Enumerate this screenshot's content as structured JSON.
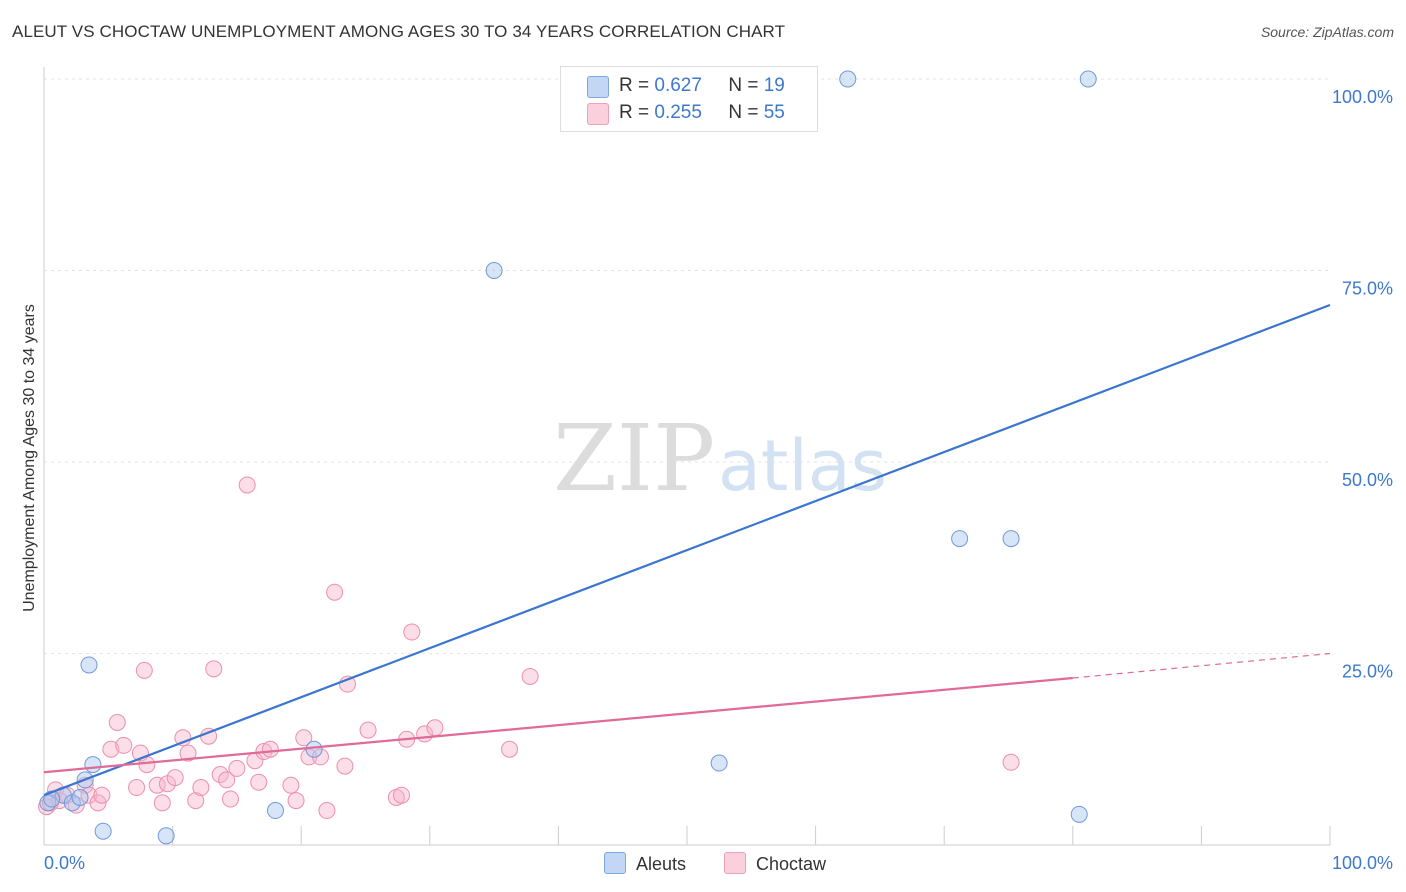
{
  "header": {
    "title": "ALEUT VS CHOCTAW UNEMPLOYMENT AMONG AGES 30 TO 34 YEARS CORRELATION CHART",
    "source": "Source: ZipAtlas.com"
  },
  "watermark": {
    "zip": "ZIP",
    "atlas": "atlas"
  },
  "legend": {
    "rows": [
      {
        "r_label": "R =",
        "r_value": "0.627",
        "n_label": "N =",
        "n_value": "19"
      },
      {
        "r_label": "R =",
        "r_value": "0.255",
        "n_label": "N =",
        "n_value": "55"
      }
    ]
  },
  "bottom_legend": {
    "aleuts": "Aleuts",
    "choctaw": "Choctaw"
  },
  "chart_data": {
    "type": "scatter",
    "title": "ALEUT VS CHOCTAW UNEMPLOYMENT AMONG AGES 30 TO 34 YEARS CORRELATION CHART",
    "xlabel": "",
    "ylabel": "Unemployment Among Ages 30 to 34 years",
    "xlim": [
      0,
      100
    ],
    "ylim": [
      0,
      100
    ],
    "x_tick_labels": [
      "0.0%",
      "100.0%"
    ],
    "y_ticks": [
      25,
      50,
      75,
      100
    ],
    "y_tick_labels": [
      "25.0%",
      "50.0%",
      "75.0%",
      "100.0%"
    ],
    "grid": true,
    "colors": {
      "aleuts": "#8fb3e8",
      "aleuts_line": "#3a76d0",
      "choctaw": "#f3a8c0",
      "choctaw_line": "#e06a98",
      "tick_text": "#3d78cc"
    },
    "series": [
      {
        "name": "Aleuts",
        "r": 0.627,
        "n": 19,
        "trend": {
          "x0": 0,
          "y0": 6.5,
          "x1": 100,
          "y1": 70.5
        },
        "points": [
          [
            0.3,
            5.5
          ],
          [
            1.5,
            6.5
          ],
          [
            2.2,
            5.5
          ],
          [
            3.2,
            8.5
          ],
          [
            3.5,
            23.5
          ],
          [
            3.8,
            10.5
          ],
          [
            4.6,
            1.8
          ],
          [
            9.5,
            1.2
          ],
          [
            18,
            4.5
          ],
          [
            21,
            12.5
          ],
          [
            35,
            75
          ],
          [
            52.5,
            10.7
          ],
          [
            62.5,
            100
          ],
          [
            71.2,
            40
          ],
          [
            75.2,
            40
          ],
          [
            80.5,
            4
          ],
          [
            81.2,
            100
          ],
          [
            0.6,
            6
          ],
          [
            2.8,
            6.2
          ]
        ]
      },
      {
        "name": "Choctaw",
        "r": 0.255,
        "n": 55,
        "trend": {
          "x0": 0,
          "y0": 9.5,
          "x1": 80,
          "y1": 21.8,
          "x_dash_end": 100,
          "y_dash_end": 25
        },
        "points": [
          [
            0.2,
            5
          ],
          [
            0.9,
            7.2
          ],
          [
            1.2,
            5.8
          ],
          [
            1.8,
            6.5
          ],
          [
            2.5,
            5.2
          ],
          [
            3.2,
            7.8
          ],
          [
            3.5,
            6.5
          ],
          [
            4.2,
            5.5
          ],
          [
            4.5,
            6.5
          ],
          [
            5.2,
            12.5
          ],
          [
            5.7,
            16
          ],
          [
            6.2,
            13
          ],
          [
            7.2,
            7.5
          ],
          [
            7.5,
            12
          ],
          [
            8.0,
            10.5
          ],
          [
            7.8,
            22.8
          ],
          [
            8.8,
            7.8
          ],
          [
            9.2,
            5.5
          ],
          [
            9.6,
            8
          ],
          [
            10.2,
            8.8
          ],
          [
            10.8,
            14
          ],
          [
            11.2,
            12
          ],
          [
            11.8,
            5.8
          ],
          [
            12.2,
            7.5
          ],
          [
            12.8,
            14.2
          ],
          [
            13.2,
            23
          ],
          [
            13.7,
            9.2
          ],
          [
            14.2,
            8.5
          ],
          [
            14.5,
            6
          ],
          [
            15,
            10
          ],
          [
            15.8,
            47
          ],
          [
            16.4,
            11
          ],
          [
            16.7,
            8.2
          ],
          [
            17.1,
            12.2
          ],
          [
            17.6,
            12.5
          ],
          [
            19.2,
            7.8
          ],
          [
            19.6,
            5.8
          ],
          [
            20.2,
            14
          ],
          [
            20.6,
            11.5
          ],
          [
            21.5,
            11.5
          ],
          [
            22,
            4.5
          ],
          [
            22.6,
            33
          ],
          [
            23.6,
            21
          ],
          [
            25.2,
            15
          ],
          [
            23.4,
            10.3
          ],
          [
            27.4,
            6.2
          ],
          [
            27.8,
            6.5
          ],
          [
            28.2,
            13.8
          ],
          [
            28.6,
            27.8
          ],
          [
            29.6,
            14.5
          ],
          [
            30.4,
            15.3
          ],
          [
            36.2,
            12.5
          ],
          [
            37.8,
            22
          ],
          [
            75.2,
            10.8
          ],
          [
            0.5,
            5.5
          ]
        ]
      }
    ]
  }
}
